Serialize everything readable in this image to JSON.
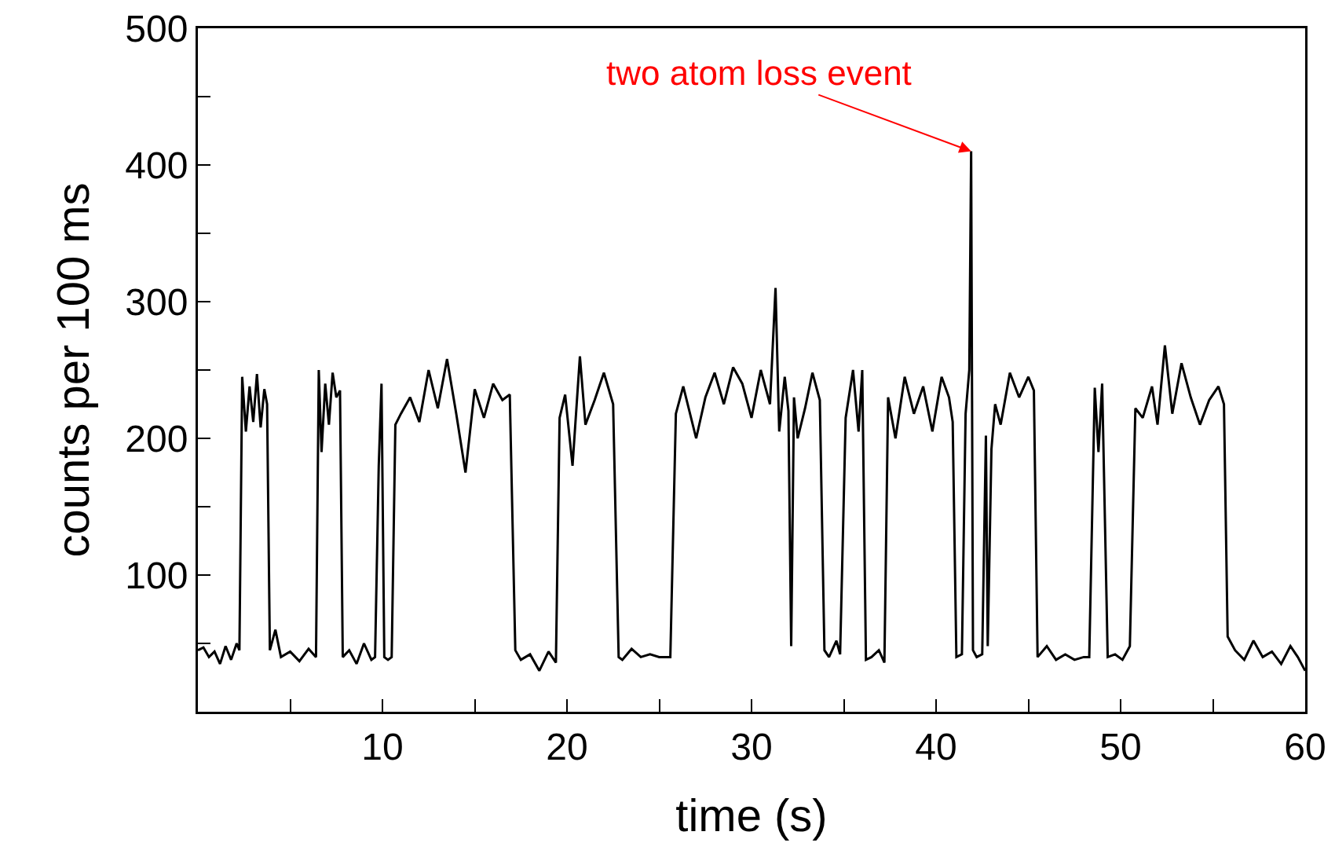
{
  "chart_data": {
    "type": "line",
    "xlabel": "time (s)",
    "ylabel": "counts per 100 ms",
    "xlim": [
      0,
      60
    ],
    "ylim": [
      0,
      500
    ],
    "xticks": [
      {
        "value": 5,
        "label": null
      },
      10,
      {
        "value": 15,
        "label": null
      },
      20,
      {
        "value": 25,
        "label": null
      },
      30,
      {
        "value": 35,
        "label": null
      },
      40,
      {
        "value": 45,
        "label": null
      },
      50,
      {
        "value": 55,
        "label": null
      },
      60
    ],
    "yticks": [
      {
        "value": 50,
        "label": null
      },
      100,
      {
        "value": 150,
        "label": null
      },
      200,
      {
        "value": 250,
        "label": null
      },
      300,
      {
        "value": 350,
        "label": null
      },
      400,
      {
        "value": 450,
        "label": null
      },
      500
    ],
    "grid": false,
    "marker": "none",
    "line_style": "solid",
    "annotations": [
      {
        "text": "two atom loss event",
        "x": 41.9,
        "y": 410
      }
    ],
    "series": [
      {
        "color": "#000000",
        "x": [
          0,
          0.3,
          0.6,
          0.9,
          1.2,
          1.5,
          1.8,
          2.1,
          2.25,
          2.4,
          2.6,
          2.8,
          3.0,
          3.2,
          3.4,
          3.6,
          3.75,
          3.9,
          4.2,
          4.5,
          5.0,
          5.5,
          6.0,
          6.4,
          6.55,
          6.7,
          6.9,
          7.1,
          7.3,
          7.5,
          7.7,
          7.85,
          8.2,
          8.6,
          9.0,
          9.4,
          9.6,
          9.8,
          9.95,
          10.1,
          10.3,
          10.5,
          10.7,
          11.0,
          11.5,
          12.0,
          12.5,
          13.0,
          13.5,
          14.0,
          14.5,
          15.0,
          15.5,
          16.0,
          16.5,
          16.9,
          17.2,
          17.5,
          18.0,
          18.5,
          19.0,
          19.4,
          19.6,
          19.9,
          20.3,
          20.7,
          21.0,
          21.5,
          22.0,
          22.5,
          22.8,
          23.0,
          23.5,
          24.0,
          24.5,
          25.0,
          25.6,
          25.9,
          26.3,
          27.0,
          27.5,
          28.0,
          28.5,
          29.0,
          29.5,
          30.0,
          30.5,
          31.0,
          31.3,
          31.5,
          31.8,
          32.0,
          32.15,
          32.3,
          32.5,
          32.9,
          33.3,
          33.7,
          33.95,
          34.2,
          34.6,
          34.8,
          35.1,
          35.5,
          35.8,
          36.0,
          36.2,
          36.5,
          36.9,
          37.2,
          37.4,
          37.8,
          38.3,
          38.8,
          39.3,
          39.8,
          40.3,
          40.7,
          40.9,
          41.1,
          41.4,
          41.6,
          41.8,
          41.9,
          42.0,
          42.2,
          42.5,
          42.7,
          42.8,
          43.0,
          43.2,
          43.5,
          44.0,
          44.5,
          45.0,
          45.3,
          45.5,
          46.0,
          46.5,
          47.0,
          47.5,
          48.0,
          48.3,
          48.6,
          48.8,
          49.0,
          49.3,
          49.7,
          50.1,
          50.5,
          50.8,
          51.2,
          51.7,
          52.0,
          52.4,
          52.8,
          53.3,
          53.8,
          54.3,
          54.8,
          55.3,
          55.6,
          55.8,
          56.2,
          56.7,
          57.2,
          57.7,
          58.2,
          58.7,
          59.2,
          59.6,
          60
        ],
        "values": [
          45,
          47,
          40,
          44,
          35,
          48,
          38,
          50,
          45,
          245,
          205,
          238,
          212,
          247,
          208,
          236,
          225,
          45,
          60,
          40,
          44,
          37,
          46,
          40,
          250,
          190,
          240,
          210,
          248,
          230,
          235,
          40,
          45,
          35,
          50,
          38,
          40,
          180,
          240,
          40,
          38,
          40,
          210,
          218,
          230,
          212,
          250,
          222,
          258,
          218,
          175,
          236,
          215,
          240,
          228,
          232,
          45,
          38,
          42,
          30,
          44,
          36,
          215,
          232,
          180,
          260,
          210,
          228,
          248,
          225,
          40,
          38,
          46,
          40,
          42,
          40,
          40,
          218,
          238,
          200,
          230,
          248,
          225,
          252,
          240,
          215,
          250,
          225,
          310,
          205,
          245,
          220,
          48,
          230,
          200,
          222,
          248,
          228,
          45,
          40,
          52,
          42,
          215,
          250,
          205,
          250,
          38,
          40,
          45,
          36,
          230,
          200,
          245,
          218,
          238,
          205,
          245,
          230,
          212,
          40,
          42,
          218,
          250,
          410,
          45,
          40,
          42,
          202,
          48,
          192,
          225,
          210,
          248,
          230,
          245,
          235,
          40,
          48,
          38,
          42,
          38,
          40,
          40,
          237,
          190,
          240,
          40,
          42,
          38,
          48,
          222,
          215,
          238,
          210,
          268,
          218,
          255,
          230,
          210,
          228,
          238,
          225,
          55,
          45,
          38,
          52,
          40,
          44,
          35,
          48,
          40,
          30
        ]
      }
    ]
  }
}
